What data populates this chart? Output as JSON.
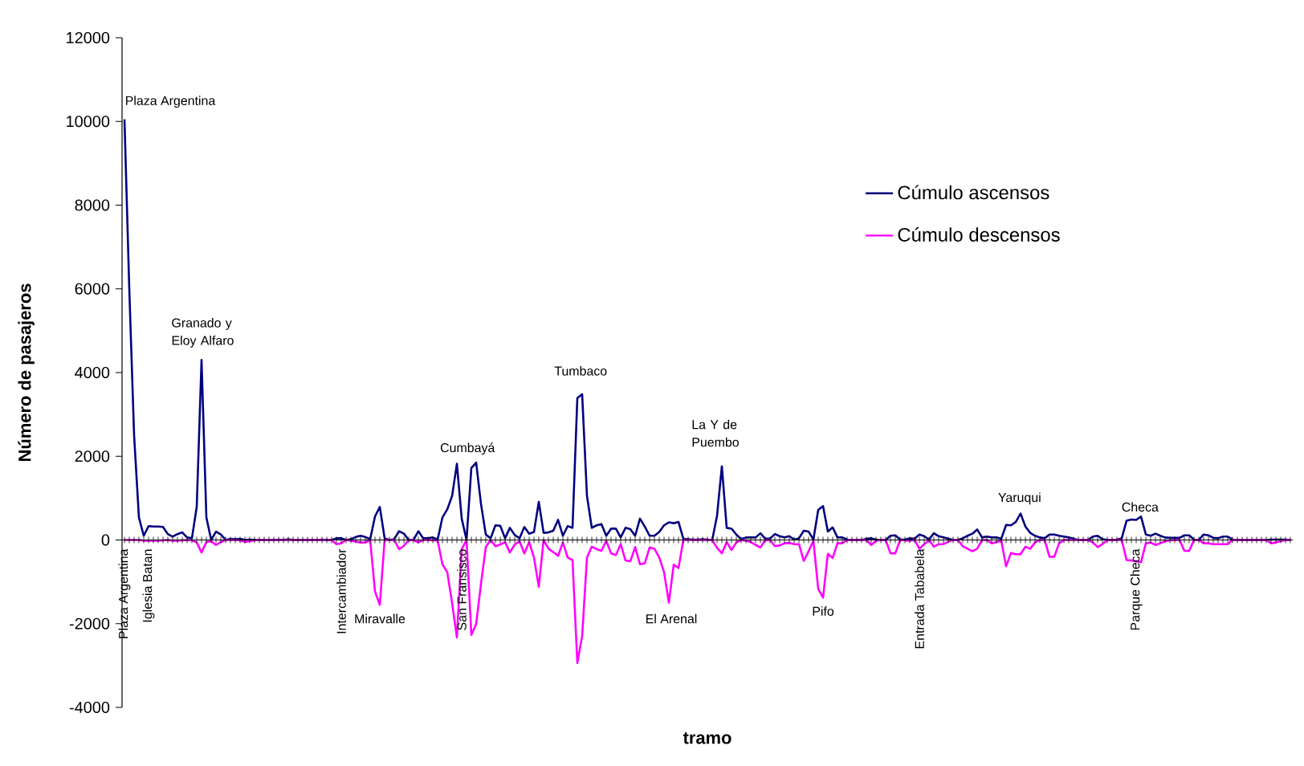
{
  "chart_data": {
    "type": "line",
    "xlabel": "tramo",
    "ylabel": "Número de pasajeros",
    "categories": [
      "Plaza Argentina",
      null,
      null,
      null,
      null,
      "Iglesia Batan",
      null,
      null,
      null,
      null,
      null,
      null,
      null,
      null,
      null,
      null,
      null,
      null,
      null,
      null,
      null,
      null,
      null,
      null,
      null,
      null,
      null,
      null,
      null,
      null,
      null,
      null,
      null,
      null,
      null,
      null,
      null,
      null,
      null,
      null,
      null,
      null,
      null,
      null,
      null,
      "Intercambiador",
      null,
      null,
      null,
      null,
      null,
      null,
      null,
      null,
      null,
      null,
      null,
      null,
      null,
      null,
      null,
      null,
      null,
      null,
      null,
      null,
      null,
      null,
      null,
      null,
      "San Fransisco",
      null,
      null,
      null,
      null,
      null,
      null,
      null,
      null,
      null,
      null,
      null,
      null,
      null,
      null,
      null,
      null,
      null,
      null,
      null,
      null,
      null,
      null,
      null,
      null,
      null,
      null,
      null,
      null,
      null,
      null,
      null,
      null,
      null,
      null,
      null,
      null,
      null,
      null,
      null,
      null,
      null,
      null,
      null,
      null,
      null,
      null,
      null,
      null,
      null,
      null,
      null,
      null,
      null,
      null,
      null,
      null,
      null,
      null,
      null,
      null,
      null,
      null,
      null,
      null,
      null,
      null,
      null,
      null,
      null,
      null,
      null,
      null,
      null,
      null,
      null,
      null,
      null,
      null,
      null,
      null,
      null,
      null,
      null,
      null,
      null,
      null,
      null,
      null,
      null,
      null,
      null,
      null,
      null,
      null,
      "Entrada Tababela",
      null,
      null,
      null,
      null,
      null,
      null,
      null,
      null,
      null,
      null,
      null,
      null,
      null,
      null,
      null,
      null,
      null,
      null,
      null,
      null,
      null,
      null,
      null,
      null,
      null,
      null,
      null,
      null,
      null,
      null,
      null,
      null,
      null,
      null,
      null,
      null,
      null,
      null,
      null,
      null,
      null,
      null,
      null,
      null,
      "Parque Checa",
      null,
      null,
      null,
      null,
      null,
      null,
      null,
      null,
      null,
      null,
      null,
      null,
      null,
      null,
      null,
      null,
      null,
      null,
      null,
      null,
      null,
      null,
      null,
      null,
      null,
      null,
      null,
      null,
      null,
      null,
      null,
      null
    ],
    "series": [
      {
        "name": "Cúmulo ascensos",
        "color": "#000080",
        "values": [
          10050,
          6000,
          2500,
          540,
          100,
          330,
          320,
          320,
          310,
          140,
          80,
          140,
          180,
          60,
          40,
          790,
          4300,
          540,
          0,
          200,
          130,
          0,
          30,
          20,
          30,
          0,
          10,
          0,
          0,
          0,
          0,
          0,
          10,
          0,
          20,
          0,
          0,
          0,
          0,
          0,
          0,
          10,
          0,
          0,
          40,
          40,
          0,
          20,
          70,
          100,
          70,
          20,
          560,
          790,
          40,
          0,
          20,
          210,
          150,
          0,
          0,
          210,
          40,
          40,
          60,
          10,
          540,
          730,
          1050,
          1820,
          510,
          0,
          1720,
          1850,
          860,
          130,
          40,
          350,
          340,
          40,
          290,
          120,
          40,
          310,
          150,
          190,
          910,
          170,
          180,
          220,
          480,
          100,
          330,
          290,
          3390,
          3480,
          1050,
          290,
          350,
          380,
          100,
          270,
          270,
          60,
          290,
          260,
          100,
          510,
          320,
          100,
          100,
          190,
          350,
          420,
          400,
          430,
          30,
          20,
          10,
          10,
          20,
          10,
          0,
          580,
          1760,
          290,
          270,
          130,
          20,
          60,
          60,
          60,
          160,
          30,
          30,
          140,
          90,
          60,
          90,
          10,
          40,
          220,
          200,
          10,
          720,
          810,
          200,
          300,
          60,
          60,
          10,
          0,
          0,
          0,
          30,
          40,
          10,
          0,
          0,
          100,
          110,
          10,
          10,
          40,
          30,
          130,
          90,
          10,
          160,
          90,
          60,
          30,
          0,
          0,
          40,
          100,
          150,
          250,
          60,
          80,
          60,
          60,
          30,
          360,
          350,
          430,
          630,
          320,
          170,
          100,
          60,
          40,
          130,
          130,
          100,
          80,
          60,
          30,
          0,
          0,
          0,
          80,
          100,
          20,
          0,
          0,
          10,
          40,
          460,
          490,
          480,
          560,
          130,
          100,
          150,
          100,
          60,
          50,
          50,
          50,
          110,
          110,
          10,
          0,
          130,
          110,
          50,
          40,
          80,
          80,
          10,
          0,
          0,
          0,
          0,
          0,
          0,
          0,
          10,
          10,
          10,
          10,
          0
        ]
      },
      {
        "name": "Cúmulo descensos",
        "color": "#ff00ff",
        "values": [
          0,
          0,
          0,
          0,
          -20,
          -20,
          -20,
          -20,
          -10,
          0,
          -20,
          -20,
          -10,
          0,
          -10,
          -60,
          -300,
          -50,
          -30,
          -120,
          -50,
          0,
          0,
          0,
          -10,
          -50,
          -30,
          -10,
          0,
          0,
          0,
          0,
          0,
          0,
          0,
          0,
          0,
          0,
          0,
          0,
          0,
          0,
          0,
          0,
          -100,
          -80,
          0,
          -20,
          -40,
          -60,
          -60,
          0,
          -1230,
          -1550,
          0,
          0,
          0,
          -220,
          -140,
          0,
          0,
          -60,
          0,
          0,
          -10,
          -10,
          -580,
          -770,
          -1500,
          -2330,
          -220,
          0,
          -2270,
          -2010,
          -1050,
          -170,
          0,
          -150,
          -110,
          -50,
          -300,
          -110,
          -30,
          -320,
          -50,
          -420,
          -1120,
          0,
          -210,
          -290,
          -380,
          -60,
          -420,
          -480,
          -2940,
          -2300,
          -420,
          -160,
          -220,
          -260,
          -20,
          -320,
          -360,
          -100,
          -490,
          -510,
          -170,
          -580,
          -560,
          -180,
          -210,
          -420,
          -770,
          -1500,
          -590,
          -670,
          0,
          0,
          0,
          0,
          0,
          0,
          0,
          -190,
          -320,
          -50,
          -240,
          -60,
          0,
          -20,
          -50,
          -120,
          -180,
          0,
          0,
          -150,
          -130,
          -80,
          -70,
          -100,
          -100,
          -500,
          -270,
          -20,
          -1170,
          -1380,
          -330,
          -430,
          -80,
          -80,
          0,
          0,
          0,
          0,
          0,
          -120,
          -20,
          0,
          0,
          -320,
          -320,
          0,
          -10,
          -20,
          0,
          -210,
          -100,
          0,
          -160,
          -100,
          -100,
          -40,
          0,
          0,
          -150,
          -210,
          -270,
          -210,
          0,
          0,
          -80,
          -50,
          -20,
          -630,
          -310,
          -340,
          -340,
          -160,
          -210,
          -60,
          0,
          0,
          -400,
          -400,
          -80,
          0,
          0,
          0,
          0,
          0,
          0,
          -60,
          -170,
          -100,
          0,
          0,
          0,
          0,
          -480,
          -490,
          -510,
          -530,
          -80,
          -60,
          -120,
          -80,
          -30,
          -10,
          0,
          0,
          -260,
          -260,
          0,
          0,
          -80,
          -80,
          -100,
          -100,
          -100,
          -100,
          0,
          0,
          0,
          0,
          0,
          0,
          0,
          0,
          -80,
          -60,
          -30,
          0,
          0
        ]
      }
    ],
    "ylim": [
      -4000,
      12000
    ],
    "yticks": [
      -4000,
      -2000,
      0,
      2000,
      4000,
      6000,
      8000,
      10000,
      12000
    ],
    "legend": "top right",
    "annotations": [
      "Plaza Argentina",
      "Granado y Eloy Alfaro",
      "Cumbayá",
      "Tumbaco",
      "La Y de Puembo",
      "Yaruqui",
      "Checa",
      "Miravalle",
      "El Arenal",
      "Pifo"
    ]
  }
}
